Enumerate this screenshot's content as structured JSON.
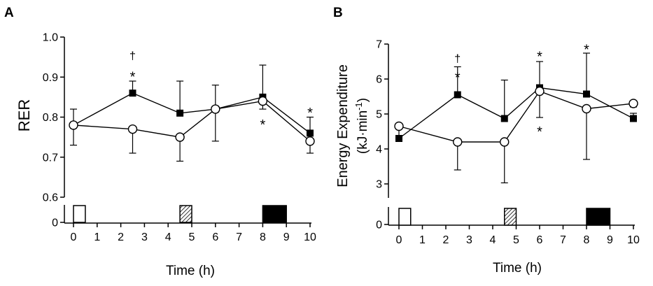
{
  "chart_data": [
    {
      "panel_label": "A",
      "type": "line",
      "ylabel": "RER",
      "xlabel": "Time (h)",
      "x_ticks": [
        "0",
        "1",
        "2",
        "3",
        "4",
        "5",
        "6",
        "7",
        "8",
        "9",
        "10"
      ],
      "xlim": [
        0,
        10
      ],
      "y_ticks": [
        "0.6",
        "0.7",
        "0.8",
        "0.9",
        "1.0"
      ],
      "ylim": [
        0.6,
        1.0
      ],
      "y_break_zero_label": "0",
      "series": [
        {
          "marker": "filled-square",
          "color": "#000000",
          "points": [
            {
              "x": 0,
              "y": 0.78,
              "err": 0.04
            },
            {
              "x": 2.5,
              "y": 0.86,
              "err": 0.03
            },
            {
              "x": 4.5,
              "y": 0.81,
              "err": 0.08
            },
            {
              "x": 6,
              "y": 0.82,
              "err": 0.06
            },
            {
              "x": 8,
              "y": 0.85,
              "err": 0.08
            },
            {
              "x": 10,
              "y": 0.76,
              "err": 0.04
            }
          ]
        },
        {
          "marker": "open-circle",
          "color": "#000000",
          "points": [
            {
              "x": 0,
              "y": 0.78,
              "err": 0.05
            },
            {
              "x": 2.5,
              "y": 0.77,
              "err": 0.06
            },
            {
              "x": 4.5,
              "y": 0.75,
              "err": 0.06
            },
            {
              "x": 6,
              "y": 0.82,
              "err": 0.08
            },
            {
              "x": 8,
              "y": 0.84,
              "err": 0.02
            },
            {
              "x": 10,
              "y": 0.74,
              "err": 0.03
            }
          ]
        }
      ],
      "annotations": [
        {
          "text": "†",
          "x": 2.5,
          "y": 0.955
        },
        {
          "text": "*",
          "x": 2.5,
          "y": 0.91
        },
        {
          "text": "*",
          "x": 8,
          "y": 0.79
        },
        {
          "text": "*",
          "x": 10,
          "y": 0.82
        }
      ],
      "meal_boxes": [
        {
          "style": "open",
          "x_start": 0,
          "x_end": 0.5
        },
        {
          "style": "hatched",
          "x_start": 4.5,
          "x_end": 5
        },
        {
          "style": "filled",
          "x_start": 8,
          "x_end": 9
        }
      ]
    },
    {
      "panel_label": "B",
      "type": "line",
      "ylabel_line1": "Energy Expenditure",
      "ylabel_line2": "(kJ·min",
      "ylabel_sup": "-1",
      "ylabel_close": ")",
      "xlabel": "Time (h)",
      "x_ticks": [
        "0",
        "1",
        "2",
        "3",
        "4",
        "5",
        "6",
        "7",
        "8",
        "9",
        "10"
      ],
      "xlim": [
        0,
        10
      ],
      "y_ticks": [
        "3",
        "4",
        "5",
        "6",
        "7"
      ],
      "ylim": [
        2.6,
        7
      ],
      "y_break_zero_label": "0",
      "series": [
        {
          "marker": "filled-square",
          "color": "#000000",
          "points": [
            {
              "x": 0,
              "y": 4.3,
              "err": 0.0
            },
            {
              "x": 2.5,
              "y": 5.55,
              "err": 0.8
            },
            {
              "x": 4.5,
              "y": 4.87,
              "err": 1.1
            },
            {
              "x": 6,
              "y": 5.75,
              "err": 0.75
            },
            {
              "x": 8,
              "y": 5.57,
              "err": 1.17
            },
            {
              "x": 10,
              "y": 4.87,
              "err": 0.15
            }
          ]
        },
        {
          "marker": "open-circle",
          "color": "#000000",
          "points": [
            {
              "x": 0,
              "y": 4.65,
              "err": 0.4
            },
            {
              "x": 2.5,
              "y": 4.2,
              "err": 0.8
            },
            {
              "x": 4.5,
              "y": 4.2,
              "err": 1.17
            },
            {
              "x": 6,
              "y": 5.65,
              "err": 0.75
            },
            {
              "x": 8,
              "y": 5.15,
              "err": 1.45
            },
            {
              "x": 10,
              "y": 5.3,
              "err": 0.1
            }
          ]
        }
      ],
      "annotations": [
        {
          "text": "†",
          "x": 2.5,
          "y": 6.6
        },
        {
          "text": "*",
          "x": 2.5,
          "y": 6.15
        },
        {
          "text": "*",
          "x": 6,
          "y": 6.75
        },
        {
          "text": "*",
          "x": 6,
          "y": 4.6
        },
        {
          "text": "*",
          "x": 8,
          "y": 6.95
        }
      ],
      "meal_boxes": [
        {
          "style": "open",
          "x_start": 0,
          "x_end": 0.5
        },
        {
          "style": "hatched",
          "x_start": 4.5,
          "x_end": 5
        },
        {
          "style": "filled",
          "x_start": 8,
          "x_end": 9
        }
      ]
    }
  ]
}
